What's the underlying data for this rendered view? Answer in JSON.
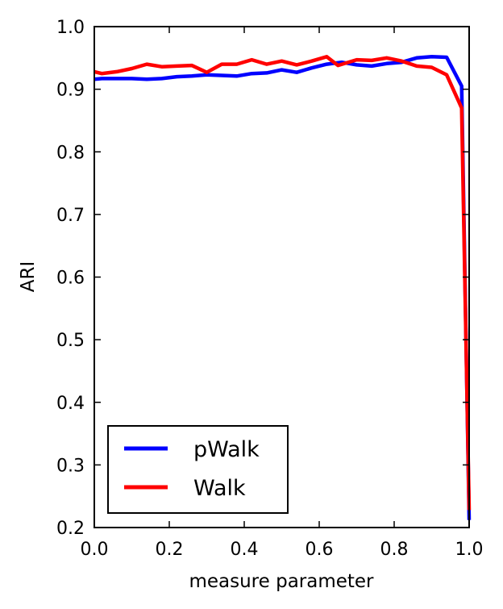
{
  "chart_data": {
    "type": "line",
    "title": "",
    "xlabel": "measure parameter",
    "ylabel": "ARI",
    "xlim": [
      0.0,
      1.0
    ],
    "ylim": [
      0.2,
      1.0
    ],
    "xticks": [
      "0.0",
      "0.2",
      "0.4",
      "0.6",
      "0.8",
      "1.0"
    ],
    "yticks": [
      "0.2",
      "0.3",
      "0.4",
      "0.5",
      "0.6",
      "0.7",
      "0.8",
      "0.9",
      "1.0"
    ],
    "grid": false,
    "legend": {
      "position": "lower-left",
      "entries": [
        "pWalk",
        "Walk"
      ]
    },
    "series": [
      {
        "name": "pWalk",
        "color": "#0000ff",
        "x": [
          0.0,
          0.02,
          0.06,
          0.1,
          0.14,
          0.18,
          0.22,
          0.26,
          0.3,
          0.34,
          0.38,
          0.42,
          0.46,
          0.5,
          0.54,
          0.58,
          0.62,
          0.66,
          0.7,
          0.74,
          0.78,
          0.82,
          0.86,
          0.9,
          0.94,
          0.98,
          1.0
        ],
        "values": [
          0.916,
          0.917,
          0.917,
          0.917,
          0.916,
          0.917,
          0.92,
          0.921,
          0.923,
          0.922,
          0.921,
          0.925,
          0.926,
          0.931,
          0.927,
          0.934,
          0.94,
          0.943,
          0.939,
          0.937,
          0.941,
          0.943,
          0.95,
          0.952,
          0.951,
          0.905,
          0.212
        ]
      },
      {
        "name": "Walk",
        "color": "#ff0000",
        "x": [
          0.0,
          0.02,
          0.06,
          0.1,
          0.14,
          0.18,
          0.22,
          0.26,
          0.3,
          0.34,
          0.38,
          0.42,
          0.46,
          0.5,
          0.54,
          0.58,
          0.62,
          0.65,
          0.7,
          0.74,
          0.78,
          0.82,
          0.86,
          0.9,
          0.94,
          0.98,
          1.0
        ],
        "values": [
          0.928,
          0.925,
          0.928,
          0.933,
          0.94,
          0.936,
          0.937,
          0.938,
          0.927,
          0.94,
          0.94,
          0.947,
          0.94,
          0.945,
          0.939,
          0.945,
          0.952,
          0.938,
          0.947,
          0.946,
          0.95,
          0.945,
          0.937,
          0.935,
          0.923,
          0.87,
          0.228
        ]
      }
    ]
  }
}
